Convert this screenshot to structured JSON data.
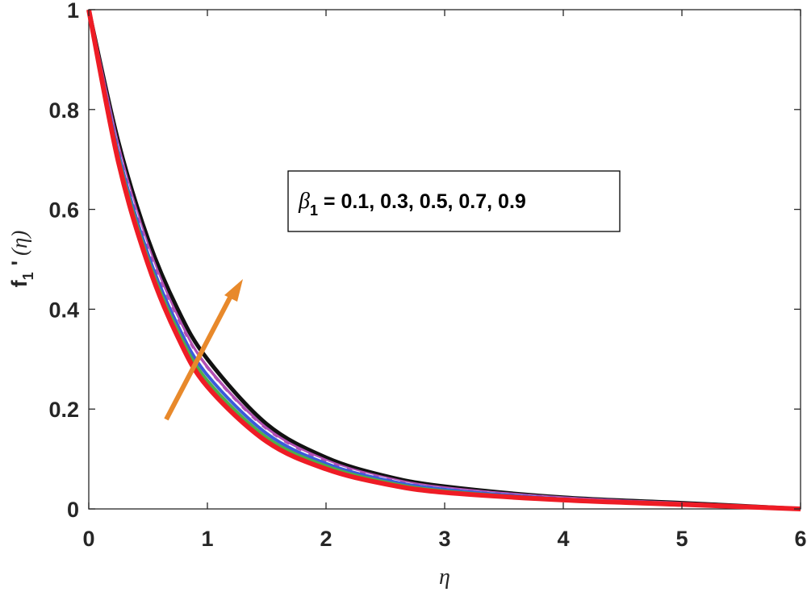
{
  "chart_data": {
    "type": "line",
    "xlabel": "η",
    "ylabel": {
      "main": "f",
      "sub": "1",
      "prime": "'",
      "arg": "(η)"
    },
    "xlim": [
      0,
      6
    ],
    "ylim": [
      0,
      1
    ],
    "xticks": [
      "0",
      "1",
      "2",
      "3",
      "4",
      "5",
      "6"
    ],
    "yticks": [
      "0",
      "0.2",
      "0.4",
      "0.6",
      "0.8",
      "1"
    ],
    "grid": false,
    "legend_box": {
      "symbol": "β",
      "sub": "1",
      "text": " = 0.1, 0.3, 0.5, 0.7, 0.9"
    },
    "annotation": "arrow indicating increasing β1",
    "x": [
      0,
      0.25,
      0.5,
      0.75,
      1,
      1.5,
      2,
      2.5,
      3,
      4,
      5,
      6
    ],
    "series": [
      {
        "color": "#ee1c25",
        "style": "solid",
        "width": 6,
        "values": [
          1,
          0.695,
          0.49,
          0.345,
          0.245,
          0.135,
          0.08,
          0.05,
          0.033,
          0.018,
          0.009,
          0
        ]
      },
      {
        "color": "#4daf4a",
        "style": "solid",
        "width": 4,
        "values": [
          1,
          0.705,
          0.5,
          0.357,
          0.257,
          0.143,
          0.086,
          0.054,
          0.036,
          0.019,
          0.01,
          0
        ]
      },
      {
        "color": "#3b5bdb",
        "style": "solid",
        "width": 4,
        "values": [
          1,
          0.713,
          0.51,
          0.368,
          0.268,
          0.151,
          0.091,
          0.058,
          0.039,
          0.02,
          0.01,
          0
        ]
      },
      {
        "color": "#ffffff",
        "style": "dash",
        "width": 3,
        "values": [
          1,
          0.719,
          0.518,
          0.376,
          0.276,
          0.156,
          0.094,
          0.06,
          0.04,
          0.021,
          0.011,
          0
        ]
      },
      {
        "color": "#b14fb4",
        "style": "solid",
        "width": 4,
        "values": [
          1,
          0.725,
          0.525,
          0.384,
          0.284,
          0.161,
          0.097,
          0.062,
          0.042,
          0.022,
          0.011,
          0
        ]
      },
      {
        "color": "#111111",
        "style": "solid",
        "width": 5,
        "values": [
          1,
          0.735,
          0.54,
          0.4,
          0.3,
          0.17,
          0.103,
          0.066,
          0.045,
          0.023,
          0.012,
          0
        ]
      }
    ],
    "colors": {
      "axis": "#262626",
      "arrow": "#e8892b"
    }
  }
}
